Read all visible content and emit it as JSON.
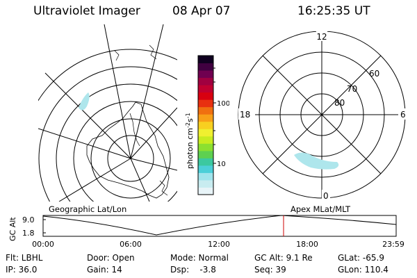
{
  "header": {
    "instrument": "Ultraviolet Imager",
    "date": "08 Apr 07",
    "time": "16:25:35 UT"
  },
  "colors": {
    "accent": "#aee6ec",
    "marker": "#cc0000"
  },
  "geo_map": {
    "label": "Geographic Lat/Lon"
  },
  "mag_map": {
    "label": "Apex MLat/MLT",
    "lat_labels": [
      "80",
      "70",
      "60"
    ],
    "mlt_labels": {
      "top": "12",
      "left": "18",
      "right": "6",
      "bottom": "0"
    }
  },
  "colorbar": {
    "unit_label": "photon cm",
    "unit_sup1": "-2",
    "unit_mid": "s",
    "unit_sup2": "-1",
    "tick_labels": [
      "100",
      "10"
    ],
    "tick_values": [
      100,
      10
    ],
    "colors": [
      "#e8f4f8",
      "#c8ecf0",
      "#a0e4ec",
      "#4ccfd8",
      "#3cc8a0",
      "#5ed050",
      "#8ce030",
      "#c8ec20",
      "#f0f030",
      "#f8d020",
      "#f8a018",
      "#f07010",
      "#e83010",
      "#d80010",
      "#c00030",
      "#a00040",
      "#700050",
      "#400040",
      "#100020"
    ]
  },
  "altitude_plot": {
    "ylabel": "GC Alt",
    "y_ticks": [
      "9.0",
      "1.8"
    ],
    "x_ticks": [
      "00:00",
      "06:00",
      "12:00",
      "18:00",
      "23:59"
    ],
    "current_time": "16:25"
  },
  "info": {
    "filter": "Flt: LBHL",
    "ip": "IP: 36.0",
    "door": "Door: Open",
    "gain": "Gain: 14",
    "mode": "Mode: Normal",
    "dsp": "Dsp:    -3.8",
    "gc_alt": "GC Alt: 9.1 Re",
    "seq": "Seq: 39",
    "glat": "GLat: -65.9",
    "glon": "GLon: 110.4"
  }
}
